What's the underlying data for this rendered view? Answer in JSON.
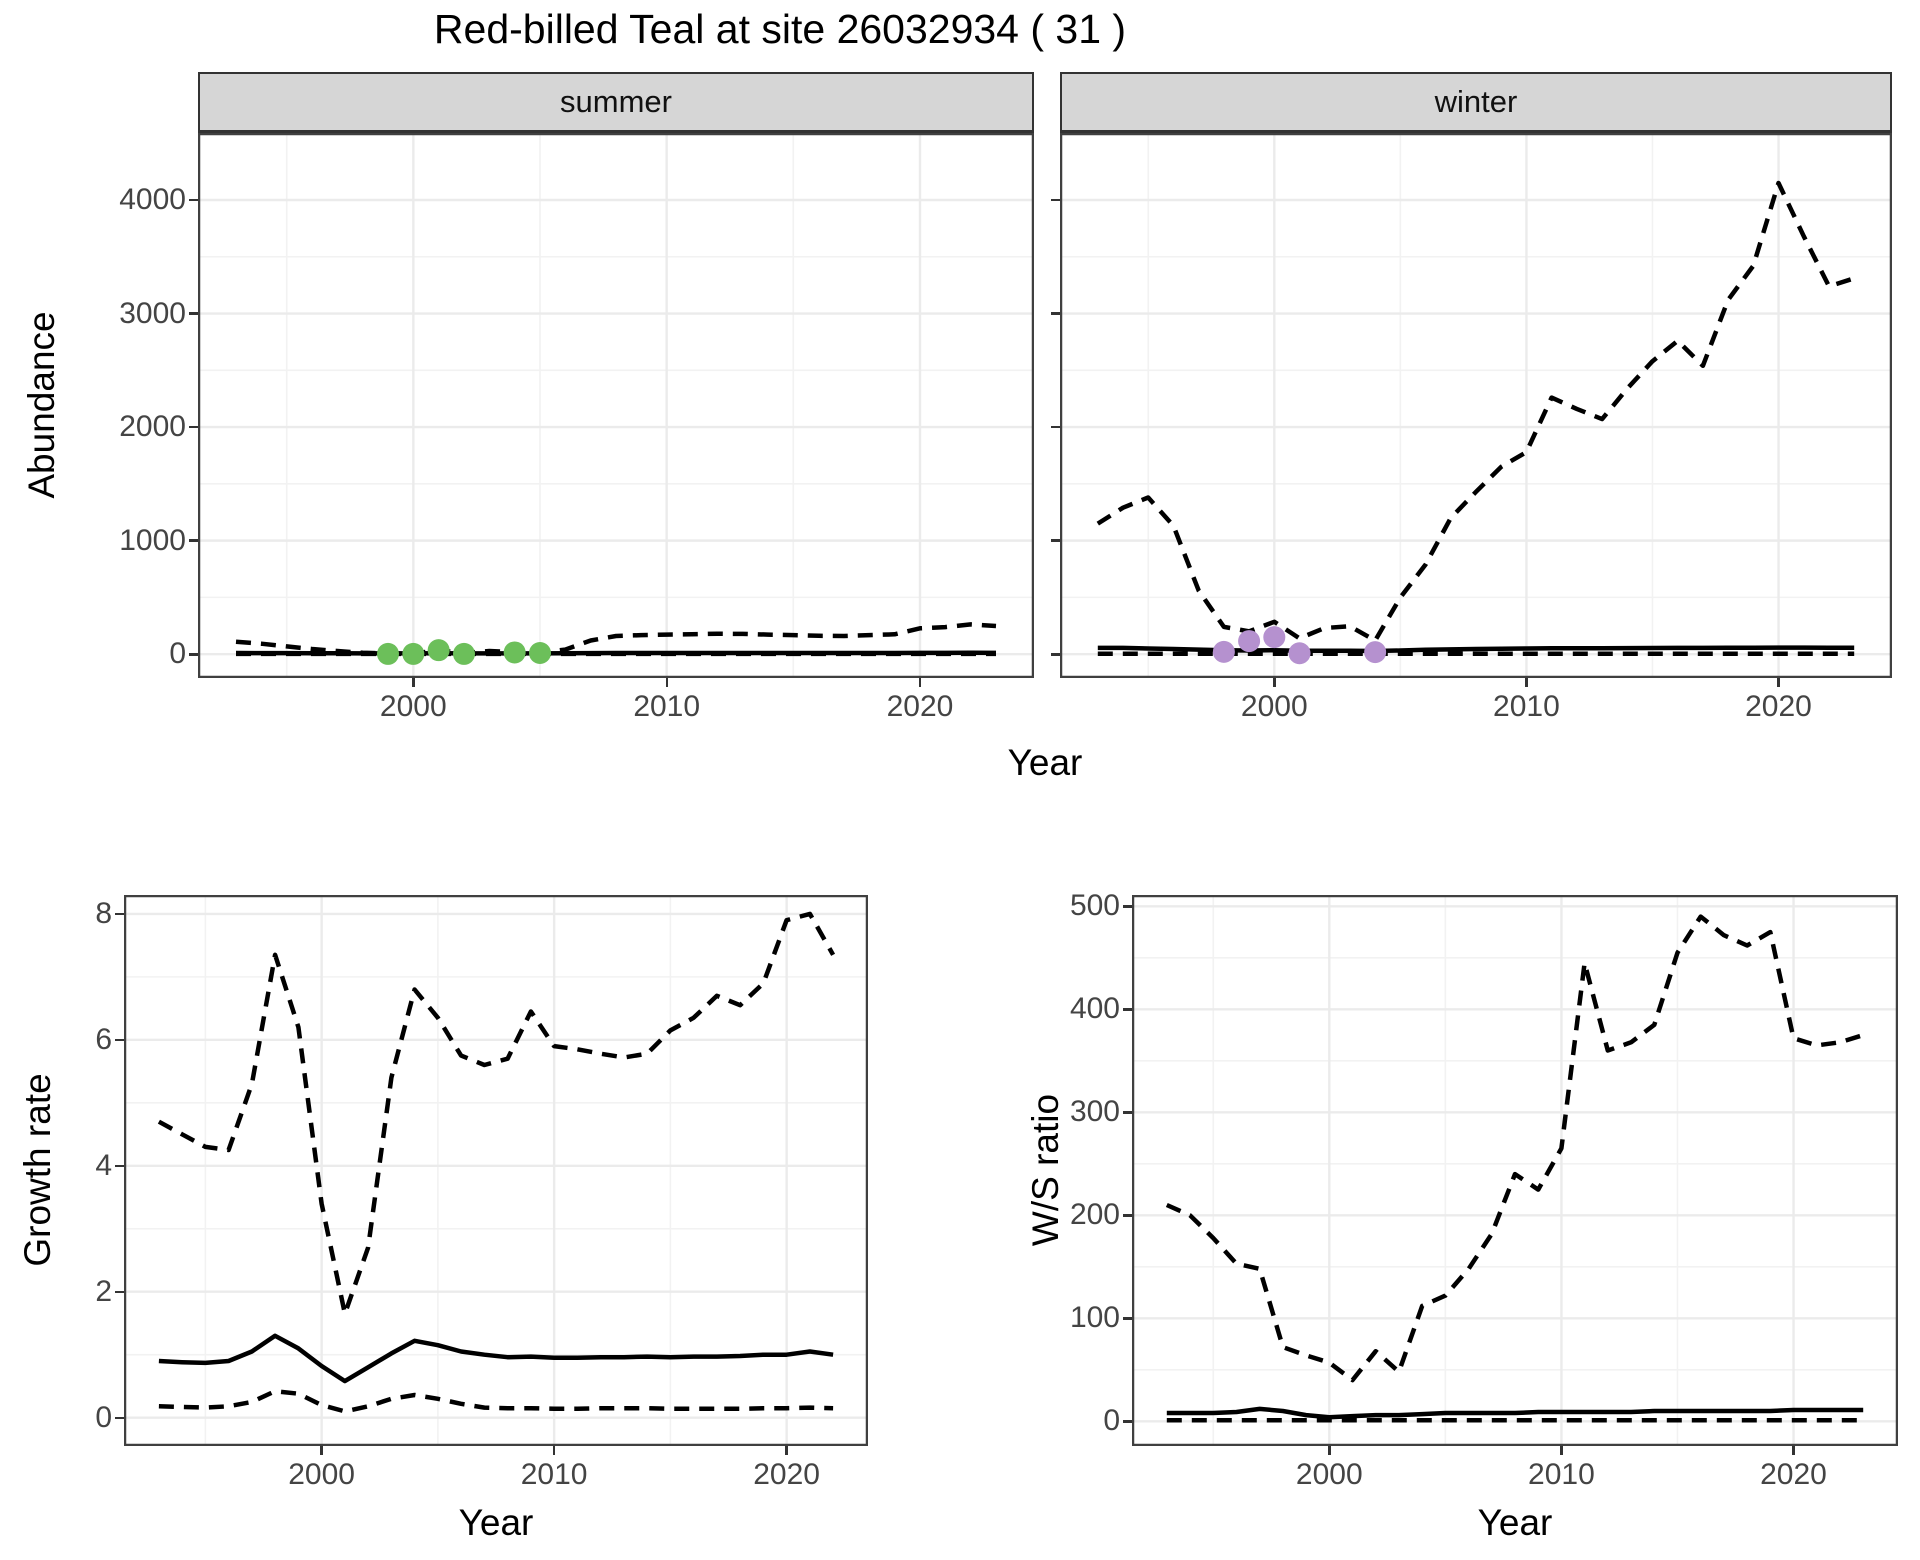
{
  "labels": {
    "title": "Red-billed Teal at site 26032934 ( 31 )",
    "year": "Year",
    "year_bottom_left": "Year",
    "year_bottom_right": "Year",
    "abundance": "Abundance",
    "growth": "Growth rate",
    "ws": "W/S ratio",
    "facet_summer": "summer",
    "facet_winter": "winter"
  },
  "colors": {
    "line": "#000000",
    "summer_points": "#6cbf5a",
    "winter_points": "#b591cf",
    "grid_major": "#ebebeb",
    "grid_minor": "#f2f2f2",
    "panel_border": "#404040",
    "strip_bg": "#d6d6d6",
    "tick_text": "#444444"
  },
  "chart_data": [
    {
      "id": "abundance_summer",
      "type": "line",
      "facet": "summer",
      "ylabel": "Abundance",
      "xlabel": "Year",
      "xlim": [
        1991.5,
        2024.5
      ],
      "ylim": [
        -210,
        4590
      ],
      "xticks": [
        2000,
        2010,
        2020
      ],
      "xticks_minor": [
        1995,
        2005,
        2015
      ],
      "yticks": [
        0,
        1000,
        2000,
        3000,
        4000
      ],
      "ytick_labels": [
        "0",
        "1000",
        "2000",
        "3000",
        "4000"
      ],
      "yticks_minor": [
        500,
        1500,
        2500,
        3500
      ],
      "show_ytick_labels": true,
      "x": [
        1993,
        1994,
        1995,
        1996,
        1997,
        1998,
        1999,
        2000,
        2001,
        2002,
        2003,
        2004,
        2005,
        2006,
        2007,
        2008,
        2009,
        2010,
        2011,
        2012,
        2013,
        2014,
        2015,
        2016,
        2017,
        2018,
        2019,
        2020,
        2021,
        2022,
        2023
      ],
      "series": [
        {
          "name": "upper_ci",
          "style": "dashed",
          "values": [
            110,
            92,
            68,
            45,
            28,
            12,
            6,
            6,
            35,
            10,
            28,
            18,
            12,
            40,
            120,
            160,
            168,
            172,
            175,
            180,
            178,
            172,
            168,
            162,
            160,
            168,
            175,
            228,
            238,
            262,
            248
          ]
        },
        {
          "name": "estimate",
          "style": "solid",
          "values": [
            10,
            9,
            9,
            8,
            8,
            7,
            7,
            7,
            8,
            7,
            7,
            7,
            7,
            8,
            9,
            10,
            10,
            10,
            10,
            10,
            10,
            10,
            10,
            10,
            10,
            10,
            10,
            11,
            11,
            12,
            11
          ]
        },
        {
          "name": "lower_ci",
          "style": "dashed",
          "values": [
            2,
            2,
            2,
            2,
            2,
            2,
            2,
            2,
            2,
            2,
            2,
            2,
            2,
            2,
            2,
            2,
            2,
            2,
            2,
            2,
            2,
            2,
            2,
            2,
            2,
            2,
            2,
            2,
            2,
            2,
            2
          ]
        }
      ],
      "points": {
        "name": "observed_counts",
        "color": "#6cbf5a",
        "x": [
          1999,
          2000,
          2001,
          2002,
          2004,
          2005
        ],
        "y": [
          2,
          2,
          35,
          2,
          15,
          10
        ]
      }
    },
    {
      "id": "abundance_winter",
      "type": "line",
      "facet": "winter",
      "ylabel": "Abundance",
      "xlabel": "Year",
      "xlim": [
        1991.5,
        2024.5
      ],
      "ylim": [
        -210,
        4590
      ],
      "xticks": [
        2000,
        2010,
        2020
      ],
      "xticks_minor": [
        1995,
        2005,
        2015
      ],
      "yticks": [
        0,
        1000,
        2000,
        3000,
        4000
      ],
      "ytick_labels": [
        "0",
        "1000",
        "2000",
        "3000",
        "4000"
      ],
      "yticks_minor": [
        500,
        1500,
        2500,
        3500
      ],
      "show_ytick_labels": false,
      "x": [
        1993,
        1994,
        1995,
        1996,
        1997,
        1998,
        1999,
        2000,
        2001,
        2002,
        2003,
        2004,
        2005,
        2006,
        2007,
        2008,
        2009,
        2010,
        2011,
        2012,
        2013,
        2014,
        2015,
        2016,
        2017,
        2018,
        2019,
        2020,
        2021,
        2022,
        2023
      ],
      "series": [
        {
          "name": "upper_ci",
          "style": "dashed",
          "values": [
            1150,
            1290,
            1380,
            1130,
            560,
            240,
            200,
            285,
            140,
            230,
            245,
            120,
            500,
            790,
            1200,
            1430,
            1650,
            1780,
            2260,
            2160,
            2070,
            2340,
            2580,
            2760,
            2540,
            3120,
            3420,
            4150,
            3680,
            3240,
            3310
          ]
        },
        {
          "name": "estimate",
          "style": "solid",
          "values": [
            55,
            55,
            50,
            45,
            40,
            35,
            32,
            35,
            30,
            30,
            30,
            28,
            32,
            38,
            42,
            45,
            48,
            50,
            52,
            52,
            52,
            53,
            54,
            55,
            55,
            56,
            57,
            58,
            58,
            57,
            57
          ]
        },
        {
          "name": "lower_ci",
          "style": "dashed",
          "values": [
            3,
            3,
            3,
            3,
            3,
            3,
            3,
            3,
            3,
            3,
            3,
            3,
            3,
            3,
            3,
            3,
            3,
            3,
            3,
            3,
            3,
            3,
            3,
            3,
            3,
            3,
            3,
            3,
            3,
            3,
            3
          ]
        }
      ],
      "points": {
        "name": "observed_counts",
        "color": "#b591cf",
        "x": [
          1998,
          1999,
          2000,
          2001,
          2004
        ],
        "y": [
          20,
          115,
          150,
          8,
          18
        ]
      }
    },
    {
      "id": "growth_rate",
      "type": "line",
      "facet": null,
      "ylabel": "Growth rate",
      "xlabel": "Year",
      "xlim": [
        1991.5,
        2023.5
      ],
      "ylim": [
        -0.45,
        8.3
      ],
      "xticks": [
        2000,
        2010,
        2020
      ],
      "xticks_minor": [
        1995,
        2005,
        2015
      ],
      "yticks": [
        0,
        2,
        4,
        6,
        8
      ],
      "ytick_labels": [
        "0",
        "2",
        "4",
        "6",
        "8"
      ],
      "yticks_minor": [
        1,
        3,
        5,
        7
      ],
      "show_ytick_labels": true,
      "x": [
        1993,
        1994,
        1995,
        1996,
        1997,
        1998,
        1999,
        2000,
        2001,
        2002,
        2003,
        2004,
        2005,
        2006,
        2007,
        2008,
        2009,
        2010,
        2011,
        2012,
        2013,
        2014,
        2015,
        2016,
        2017,
        2018,
        2019,
        2020,
        2021,
        2022
      ],
      "series": [
        {
          "name": "upper_ci",
          "style": "dashed",
          "values": [
            4.7,
            4.5,
            4.3,
            4.25,
            5.3,
            7.35,
            6.2,
            3.4,
            1.65,
            2.7,
            5.4,
            6.8,
            6.35,
            5.75,
            5.6,
            5.7,
            6.45,
            5.9,
            5.85,
            5.78,
            5.72,
            5.78,
            6.15,
            6.35,
            6.7,
            6.55,
            6.9,
            7.9,
            8.0,
            7.35
          ]
        },
        {
          "name": "estimate",
          "style": "solid",
          "values": [
            0.9,
            0.88,
            0.87,
            0.9,
            1.05,
            1.3,
            1.1,
            0.82,
            0.58,
            0.8,
            1.02,
            1.22,
            1.15,
            1.05,
            1.0,
            0.96,
            0.97,
            0.95,
            0.95,
            0.96,
            0.96,
            0.97,
            0.96,
            0.97,
            0.97,
            0.98,
            1.0,
            1.0,
            1.05,
            1.0
          ]
        },
        {
          "name": "lower_ci",
          "style": "dashed",
          "values": [
            0.18,
            0.17,
            0.16,
            0.18,
            0.25,
            0.42,
            0.38,
            0.2,
            0.1,
            0.18,
            0.3,
            0.36,
            0.3,
            0.22,
            0.16,
            0.15,
            0.15,
            0.14,
            0.14,
            0.15,
            0.15,
            0.15,
            0.14,
            0.14,
            0.14,
            0.14,
            0.15,
            0.15,
            0.16,
            0.15
          ]
        }
      ],
      "points": null
    },
    {
      "id": "ws_ratio",
      "type": "line",
      "facet": null,
      "ylabel": "W/S ratio",
      "xlabel": "Year",
      "xlim": [
        1991.5,
        2024.5
      ],
      "ylim": [
        -24,
        511
      ],
      "xticks": [
        2000,
        2010,
        2020
      ],
      "xticks_minor": [
        1995,
        2005,
        2015
      ],
      "yticks": [
        0,
        100,
        200,
        300,
        400,
        500
      ],
      "ytick_labels": [
        "0",
        "100",
        "200",
        "300",
        "400",
        "500"
      ],
      "yticks_minor": [
        50,
        150,
        250,
        350,
        450
      ],
      "show_ytick_labels": true,
      "x": [
        1993,
        1994,
        1995,
        1996,
        1997,
        1998,
        1999,
        2000,
        2001,
        2002,
        2003,
        2004,
        2005,
        2006,
        2007,
        2008,
        2009,
        2010,
        2011,
        2012,
        2013,
        2014,
        2015,
        2016,
        2017,
        2018,
        2019,
        2020,
        2021,
        2022,
        2023
      ],
      "series": [
        {
          "name": "upper_ci",
          "style": "dashed",
          "values": [
            210,
            200,
            178,
            153,
            148,
            72,
            64,
            57,
            40,
            68,
            48,
            112,
            122,
            148,
            182,
            240,
            225,
            265,
            445,
            360,
            368,
            385,
            455,
            490,
            472,
            462,
            475,
            372,
            365,
            368,
            375
          ]
        },
        {
          "name": "estimate",
          "style": "solid",
          "values": [
            8,
            8,
            8,
            9,
            12,
            10,
            6,
            4,
            5,
            6,
            6,
            7,
            8,
            8,
            8,
            8,
            9,
            9,
            9,
            9,
            9,
            10,
            10,
            10,
            10,
            10,
            10,
            11,
            11,
            11,
            11
          ]
        },
        {
          "name": "lower_ci",
          "style": "dashed",
          "values": [
            1,
            1,
            1,
            1,
            1,
            1,
            1,
            1,
            1,
            1,
            1,
            1,
            1,
            1,
            1,
            1,
            1,
            1,
            1,
            1,
            1,
            1,
            1,
            1,
            1,
            1,
            1,
            1,
            1,
            1,
            1
          ]
        }
      ],
      "points": null
    }
  ]
}
